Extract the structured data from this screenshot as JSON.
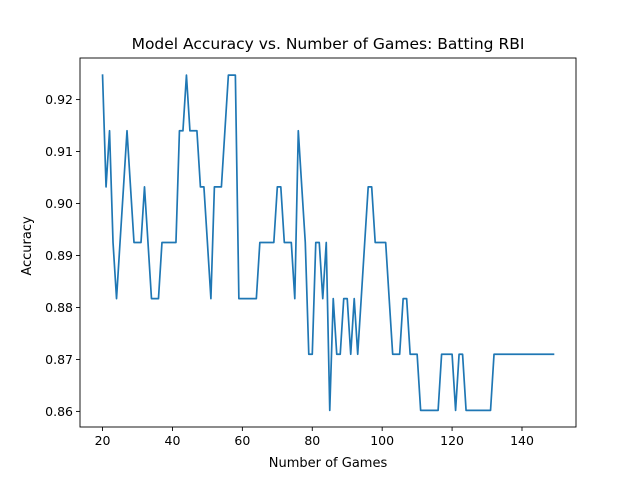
{
  "chart_data": {
    "type": "line",
    "title": "Model Accuracy vs. Number of Games: Batting RBI",
    "xlabel": "Number of Games",
    "ylabel": "Accuracy",
    "xlim": [
      13.55,
      155.45
    ],
    "ylim": [
      0.857,
      0.928
    ],
    "xticks": [
      20,
      40,
      60,
      80,
      100,
      120,
      140
    ],
    "yticks": [
      0.86,
      0.87,
      0.88,
      0.89,
      0.9,
      0.91,
      0.92
    ],
    "ytick_format": 2,
    "grid": false,
    "series": [
      {
        "color": "#1f77b4",
        "x": [
          20,
          21,
          22,
          23,
          24,
          25,
          26,
          27,
          28,
          29,
          30,
          31,
          32,
          33,
          34,
          35,
          36,
          37,
          38,
          39,
          40,
          41,
          42,
          43,
          44,
          45,
          46,
          47,
          48,
          49,
          50,
          51,
          52,
          53,
          54,
          55,
          56,
          57,
          58,
          59,
          60,
          61,
          62,
          63,
          64,
          65,
          66,
          67,
          68,
          69,
          70,
          71,
          72,
          73,
          74,
          75,
          76,
          77,
          78,
          79,
          80,
          81,
          82,
          83,
          84,
          85,
          86,
          87,
          88,
          89,
          90,
          91,
          92,
          93,
          94,
          95,
          96,
          97,
          98,
          99,
          100,
          101,
          102,
          103,
          104,
          105,
          106,
          107,
          108,
          109,
          110,
          111,
          112,
          113,
          114,
          115,
          116,
          117,
          118,
          119,
          120,
          121,
          122,
          123,
          124,
          125,
          126,
          127,
          128,
          129,
          130,
          131,
          132,
          133,
          134,
          135,
          136,
          137,
          138,
          139,
          140,
          141,
          142,
          143,
          144,
          145,
          146,
          147,
          148,
          149
        ],
        "values": [
          0.9247,
          0.9032,
          0.914,
          0.8925,
          0.8817,
          0.8925,
          0.9032,
          0.914,
          0.9032,
          0.8925,
          0.8925,
          0.8925,
          0.9032,
          0.8925,
          0.8817,
          0.8817,
          0.8817,
          0.8925,
          0.8925,
          0.8925,
          0.8925,
          0.8925,
          0.914,
          0.914,
          0.9247,
          0.914,
          0.914,
          0.914,
          0.9032,
          0.9032,
          0.8925,
          0.8817,
          0.9032,
          0.9032,
          0.9032,
          0.914,
          0.9247,
          0.9247,
          0.9247,
          0.8817,
          0.8817,
          0.8817,
          0.8817,
          0.8817,
          0.8817,
          0.8925,
          0.8925,
          0.8925,
          0.8925,
          0.8925,
          0.9032,
          0.9032,
          0.8925,
          0.8925,
          0.8925,
          0.8817,
          0.914,
          0.9032,
          0.8925,
          0.871,
          0.871,
          0.8925,
          0.8925,
          0.8817,
          0.8925,
          0.8602,
          0.8817,
          0.871,
          0.871,
          0.8817,
          0.8817,
          0.871,
          0.8817,
          0.871,
          0.8817,
          0.8925,
          0.9032,
          0.9032,
          0.8925,
          0.8925,
          0.8925,
          0.8925,
          0.8817,
          0.871,
          0.871,
          0.871,
          0.8817,
          0.8817,
          0.871,
          0.871,
          0.871,
          0.8602,
          0.8602,
          0.8602,
          0.8602,
          0.8602,
          0.8602,
          0.871,
          0.871,
          0.871,
          0.871,
          0.8602,
          0.871,
          0.871,
          0.8602,
          0.8602,
          0.8602,
          0.8602,
          0.8602,
          0.8602,
          0.8602,
          0.8602,
          0.871,
          0.871,
          0.871,
          0.871,
          0.871,
          0.871,
          0.871,
          0.871,
          0.871,
          0.871,
          0.871,
          0.871,
          0.871,
          0.871,
          0.871,
          0.871,
          0.871,
          0.871
        ]
      }
    ]
  }
}
